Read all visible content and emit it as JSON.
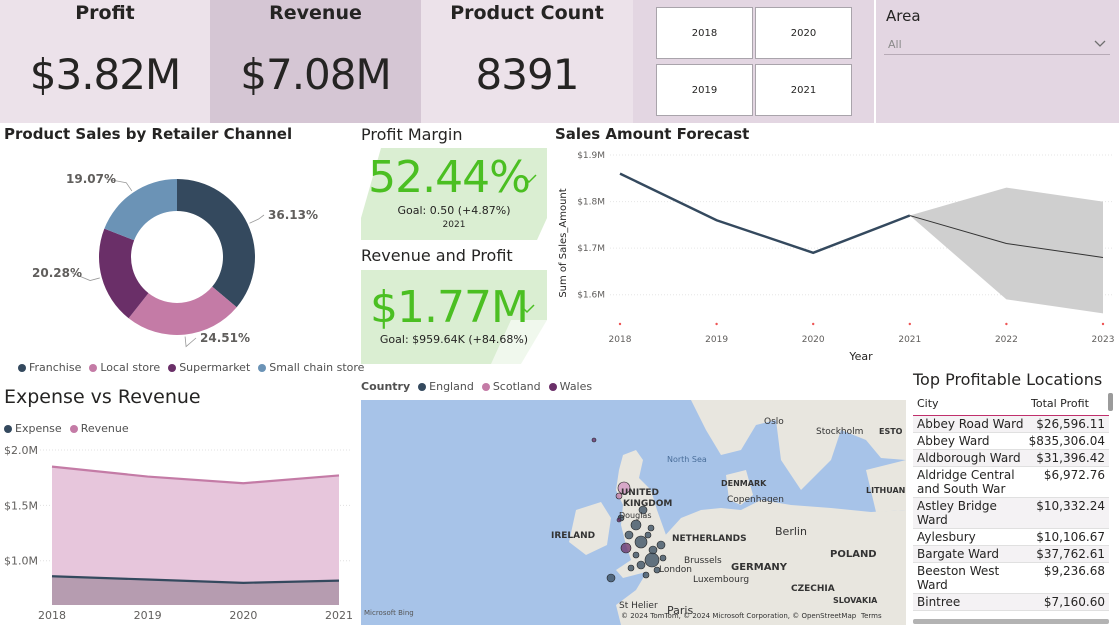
{
  "kpis": {
    "profit": {
      "label": "Profit",
      "value": "$3.82M"
    },
    "revenue": {
      "label": "Revenue",
      "value": "$7.08M"
    },
    "product_count": {
      "label": "Product Count",
      "value": "8391"
    }
  },
  "year_slicer": {
    "buttons": [
      "2018",
      "2020",
      "2019",
      "2021"
    ]
  },
  "area_slicer": {
    "label": "Area",
    "selected": "All"
  },
  "colors": {
    "navy": "#34495e",
    "pink": "#c47ba6",
    "plum": "#6a2f68",
    "steel": "#6b93b6",
    "green": "#4bbf22",
    "kpi_bg_light": "#ece2ea",
    "kpi_bg_dark": "#d5c6d4"
  },
  "retailer": {
    "title": "Product Sales by Retailer Channel",
    "legend": [
      "Franchise",
      "Local store",
      "Supermarket",
      "Small chain store"
    ],
    "chart_data": {
      "type": "pie",
      "categories": [
        "Franchise",
        "Local store",
        "Supermarket",
        "Small chain store"
      ],
      "values": [
        36.13,
        24.51,
        20.28,
        19.07
      ],
      "labels": [
        "36.13%",
        "24.51%",
        "20.28%",
        "19.07%"
      ]
    }
  },
  "profit_margin": {
    "title": "Profit Margin",
    "value": "52.44%",
    "goal": "Goal: 0.50 (+4.87%)",
    "year": "2021"
  },
  "rev_profit": {
    "title": "Revenue and Profit",
    "value": "$1.77M",
    "goal": "Goal: $959.64K (+84.68%)"
  },
  "forecast": {
    "title": "Sales Amount Forecast",
    "chart_data": {
      "type": "line",
      "x": [
        "2018",
        "2019",
        "2020",
        "2021",
        "2022",
        "2023"
      ],
      "series": [
        {
          "name": "",
          "values": [
            1.86,
            1.76,
            1.69,
            1.77,
            null,
            null
          ]
        },
        {
          "name": "",
          "values": [
            null,
            null,
            null,
            1.77,
            1.71,
            1.68
          ]
        }
      ],
      "forecast_band": {
        "x": [
          "2021",
          "2022",
          "2023"
        ],
        "upper": [
          1.77,
          1.83,
          1.8
        ],
        "lower": [
          1.77,
          1.59,
          1.56
        ]
      },
      "xlabel": "Year",
      "ylabel": "Sum of Sales_Amount",
      "yticks": [
        "$1.6M",
        "$1.7M",
        "$1.8M",
        "$1.9M"
      ],
      "ylim": [
        1.55,
        1.9
      ]
    }
  },
  "expense": {
    "title": "Expense vs Revenue",
    "legend": [
      "Expense",
      "Revenue"
    ],
    "chart_data": {
      "type": "area",
      "x": [
        "2018",
        "2019",
        "2020",
        "2021"
      ],
      "series": [
        {
          "name": "Expense",
          "values": [
            0.86,
            0.83,
            0.8,
            0.82
          ]
        },
        {
          "name": "Revenue",
          "values": [
            1.85,
            1.76,
            1.7,
            1.77
          ]
        }
      ],
      "yticks": [
        "$1.0M",
        "$1.5M",
        "$2.0M"
      ],
      "ylim": [
        0.6,
        2.0
      ]
    }
  },
  "map": {
    "legend_title": "Country",
    "legend": [
      "England",
      "Scotland",
      "Wales"
    ],
    "labels": [
      "Oslo",
      "Stockholm",
      "ESTO",
      "North Sea",
      "DENMARK",
      "LITHUANIA",
      "UNITED",
      "KINGDOM",
      "Copenhagen",
      "Douglas",
      "IRELAND",
      "NETHERLANDS",
      "Berlin",
      "Brussels",
      "GERMANY",
      "POLAND",
      "Luxembourg",
      "CZECHIA",
      "SLOVAKIA",
      "St Helier",
      "Paris",
      "London"
    ],
    "bing": "Microsoft Bing",
    "credit": "© 2024 TomTom, © 2024 Microsoft Corporation, © OpenStreetMap",
    "terms": "Terms"
  },
  "locations": {
    "title": "Top Profitable Locations",
    "columns": [
      "City",
      "Total Profit"
    ],
    "rows": [
      [
        "Abbey Road Ward",
        "$26,596.11"
      ],
      [
        "Abbey Ward",
        "$835,306.04"
      ],
      [
        "Aldborough Ward",
        "$31,396.42"
      ],
      [
        "Aldridge Central and South War",
        "$6,972.76"
      ],
      [
        "Astley Bridge Ward",
        "$10,332.24"
      ],
      [
        "Aylesbury",
        "$10,106.67"
      ],
      [
        "Bargate Ward",
        "$37,762.61"
      ],
      [
        "Beeston West Ward",
        "$9,236.68"
      ],
      [
        "Bintree",
        "$7,160.60"
      ]
    ]
  }
}
